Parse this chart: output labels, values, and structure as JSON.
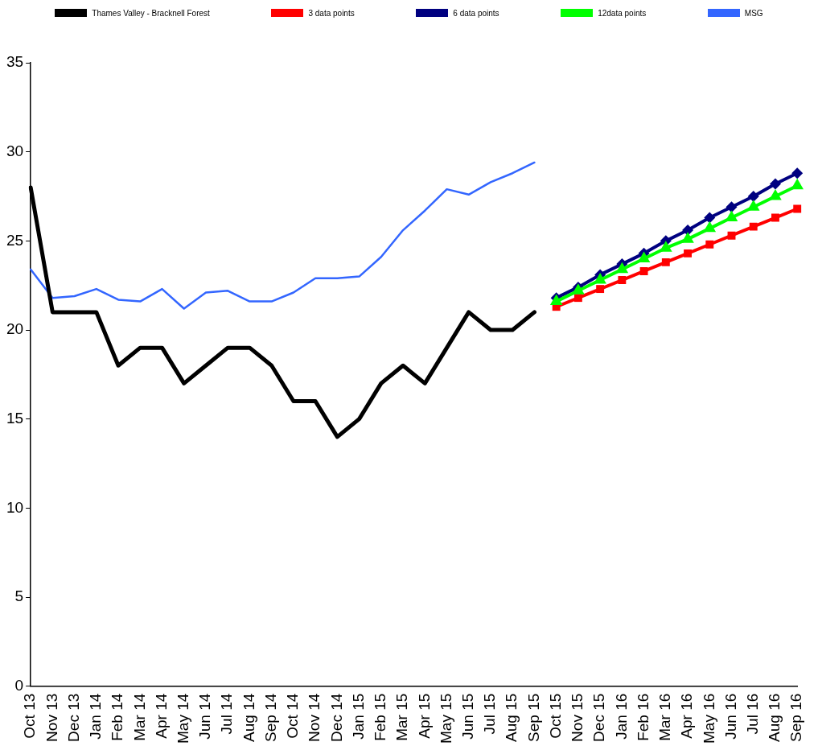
{
  "chart_data": {
    "type": "line",
    "categories": [
      "Oct 13",
      "Nov 13",
      "Dec 13",
      "Jan 14",
      "Feb 14",
      "Mar 14",
      "Apr 14",
      "May 14",
      "Jun 14",
      "Jul 14",
      "Aug 14",
      "Sep 14",
      "Oct 14",
      "Nov 14",
      "Dec 14",
      "Jan 15",
      "Feb 15",
      "Mar 15",
      "Apr 15",
      "May 15",
      "Jun 15",
      "Jul 15",
      "Aug 15",
      "Sep 15",
      "Oct 15",
      "Nov 15",
      "Dec 15",
      "Jan 16",
      "Feb 16",
      "Mar 16",
      "Apr 16",
      "May 16",
      "Jun 16",
      "Jul 16",
      "Aug 16",
      "Sep 16"
    ],
    "series": [
      {
        "name": "Thames Valley - Bracknell Forest",
        "color": "#000000",
        "marker": "none",
        "values": [
          28,
          21,
          21,
          21,
          18,
          19,
          19,
          17,
          18,
          19,
          19,
          18,
          16,
          16,
          14,
          15,
          17,
          18,
          17,
          19,
          21,
          20,
          20,
          21,
          null,
          null,
          null,
          null,
          null,
          null,
          null,
          null,
          null,
          null,
          null,
          null
        ]
      },
      {
        "name": "3 data points",
        "color": "#ff0000",
        "marker": "square",
        "values": [
          null,
          null,
          null,
          null,
          null,
          null,
          null,
          null,
          null,
          null,
          null,
          null,
          null,
          null,
          null,
          null,
          null,
          null,
          null,
          null,
          null,
          null,
          null,
          null,
          21.3,
          21.8,
          22.3,
          22.8,
          23.3,
          23.8,
          24.3,
          24.8,
          25.3,
          25.8,
          26.3,
          26.8
        ]
      },
      {
        "name": "6 data points",
        "color": "#000080",
        "marker": "diamond",
        "values": [
          null,
          null,
          null,
          null,
          null,
          null,
          null,
          null,
          null,
          null,
          null,
          null,
          null,
          null,
          null,
          null,
          null,
          null,
          null,
          null,
          null,
          null,
          null,
          null,
          21.8,
          22.4,
          23.1,
          23.7,
          24.3,
          25.0,
          25.6,
          26.3,
          26.9,
          27.5,
          28.2,
          28.8
        ]
      },
      {
        "name": "12data points",
        "color": "#00ff00",
        "marker": "triangle",
        "values": [
          null,
          null,
          null,
          null,
          null,
          null,
          null,
          null,
          null,
          null,
          null,
          null,
          null,
          null,
          null,
          null,
          null,
          null,
          null,
          null,
          null,
          null,
          null,
          null,
          21.6,
          22.2,
          22.8,
          23.4,
          24.0,
          24.6,
          25.1,
          25.7,
          26.3,
          26.9,
          27.5,
          28.1
        ]
      },
      {
        "name": "MSG",
        "color": "#3366ff",
        "marker": "none",
        "values": [
          23.4,
          21.8,
          21.9,
          22.3,
          21.7,
          21.6,
          22.3,
          21.2,
          22.1,
          22.2,
          21.6,
          21.6,
          22.1,
          22.9,
          22.9,
          23.0,
          24.1,
          25.6,
          26.7,
          27.9,
          27.6,
          28.3,
          28.8,
          29.4,
          null,
          null,
          null,
          null,
          null,
          null,
          null,
          null,
          null,
          null,
          null,
          null
        ]
      }
    ],
    "ylim": [
      0,
      35
    ],
    "yticks": [
      0,
      5,
      10,
      15,
      20,
      25,
      30,
      35
    ],
    "grid": false,
    "legend": "top",
    "line_style": "solid"
  }
}
